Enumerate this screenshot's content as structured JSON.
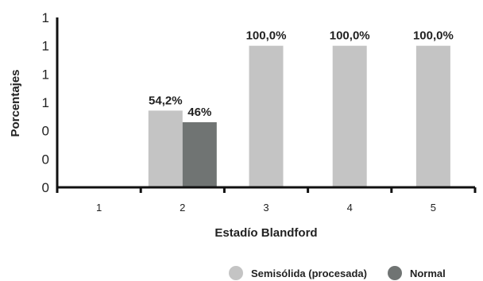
{
  "chart_data": {
    "type": "bar",
    "xlabel": "Estadío Blandford",
    "ylabel": "Porcentajes",
    "categories": [
      "1",
      "2",
      "3",
      "4",
      "5"
    ],
    "y_tick_labels": [
      "0",
      "0",
      "0",
      "1",
      "1",
      "1",
      "1"
    ],
    "y_tick_values": [
      0,
      0.2,
      0.4,
      0.6,
      0.8,
      1.0,
      1.2
    ],
    "ylim": [
      0,
      1.2
    ],
    "grid": false,
    "legend_position": "bottom-right",
    "series": [
      {
        "name": "Semisólida (procesada)",
        "color": "#c4c4c4",
        "values": [
          null,
          0.542,
          1.0,
          1.0,
          1.0
        ],
        "labels": [
          "",
          "54,2%",
          "100,0%",
          "100,0%",
          "100,0%"
        ]
      },
      {
        "name": "Normal",
        "color": "#707473",
        "values": [
          null,
          0.46,
          null,
          null,
          null
        ],
        "labels": [
          "",
          "46%",
          "",
          "",
          ""
        ]
      }
    ]
  }
}
